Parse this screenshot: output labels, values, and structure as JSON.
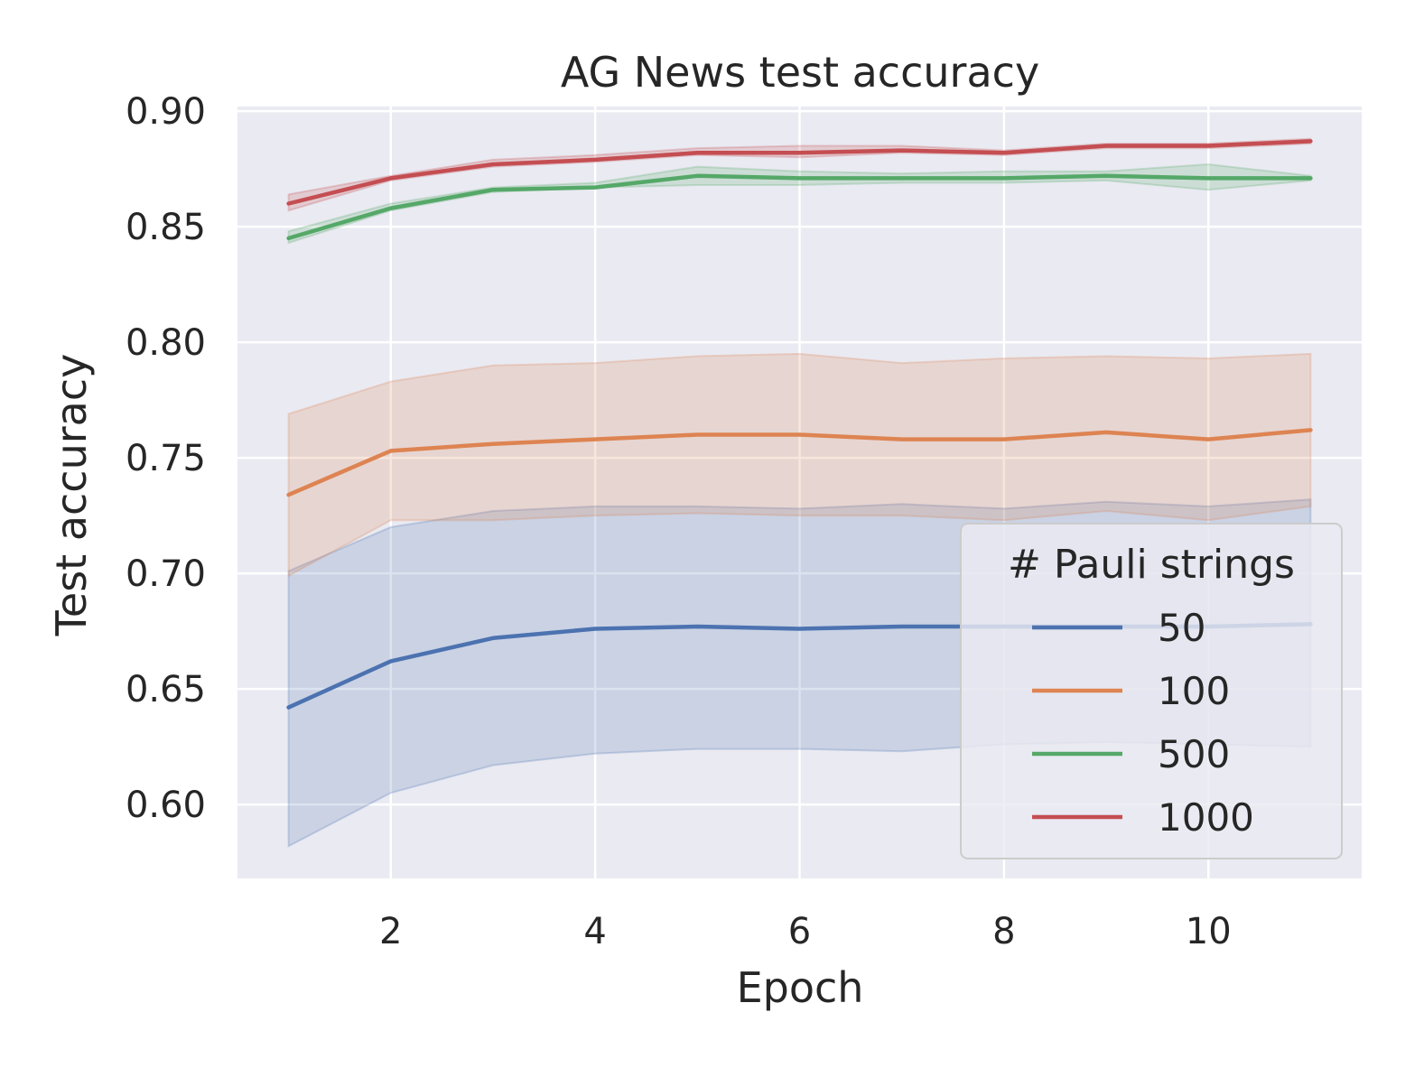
{
  "chart_data": {
    "type": "line",
    "title": "AG News test accuracy",
    "xlabel": "Epoch",
    "ylabel": "Test accuracy",
    "xlim": [
      0.5,
      11.5
    ],
    "ylim": [
      0.568,
      0.902
    ],
    "x_ticks": [
      2,
      4,
      6,
      8,
      10
    ],
    "y_ticks": [
      0.6,
      0.65,
      0.7,
      0.75,
      0.8,
      0.85,
      0.9
    ],
    "y_tick_labels": [
      "0.60",
      "0.65",
      "0.70",
      "0.75",
      "0.80",
      "0.85",
      "0.90"
    ],
    "grid": true,
    "legend": {
      "title": "# Pauli strings",
      "placement": "lower-right"
    },
    "x": [
      1,
      2,
      3,
      4,
      5,
      6,
      7,
      8,
      9,
      10,
      11
    ],
    "series": [
      {
        "name": "50",
        "color": "#4c72b0",
        "values": [
          0.642,
          0.662,
          0.672,
          0.676,
          0.677,
          0.676,
          0.677,
          0.677,
          0.677,
          0.677,
          0.678
        ],
        "lower": [
          0.582,
          0.605,
          0.617,
          0.622,
          0.624,
          0.624,
          0.623,
          0.626,
          0.627,
          0.626,
          0.625
        ],
        "upper": [
          0.701,
          0.72,
          0.727,
          0.729,
          0.729,
          0.728,
          0.73,
          0.728,
          0.731,
          0.729,
          0.732
        ]
      },
      {
        "name": "100",
        "color": "#dd8452",
        "values": [
          0.734,
          0.753,
          0.756,
          0.758,
          0.76,
          0.76,
          0.758,
          0.758,
          0.761,
          0.758,
          0.762
        ],
        "lower": [
          0.699,
          0.723,
          0.723,
          0.725,
          0.726,
          0.725,
          0.725,
          0.723,
          0.727,
          0.723,
          0.729
        ],
        "upper": [
          0.769,
          0.783,
          0.79,
          0.791,
          0.794,
          0.795,
          0.791,
          0.793,
          0.794,
          0.793,
          0.795
        ]
      },
      {
        "name": "500",
        "color": "#55a868",
        "values": [
          0.845,
          0.858,
          0.866,
          0.867,
          0.872,
          0.871,
          0.871,
          0.871,
          0.872,
          0.871,
          0.871
        ],
        "lower": [
          0.843,
          0.857,
          0.865,
          0.867,
          0.868,
          0.868,
          0.869,
          0.869,
          0.87,
          0.866,
          0.87
        ],
        "upper": [
          0.848,
          0.86,
          0.867,
          0.869,
          0.876,
          0.874,
          0.873,
          0.874,
          0.874,
          0.877,
          0.872
        ]
      },
      {
        "name": "1000",
        "color": "#c44e52",
        "values": [
          0.86,
          0.871,
          0.877,
          0.879,
          0.882,
          0.882,
          0.883,
          0.882,
          0.885,
          0.885,
          0.887
        ],
        "lower": [
          0.857,
          0.87,
          0.876,
          0.878,
          0.881,
          0.88,
          0.882,
          0.881,
          0.884,
          0.884,
          0.886
        ],
        "upper": [
          0.864,
          0.872,
          0.879,
          0.881,
          0.884,
          0.885,
          0.885,
          0.883,
          0.886,
          0.886,
          0.888
        ]
      }
    ]
  }
}
